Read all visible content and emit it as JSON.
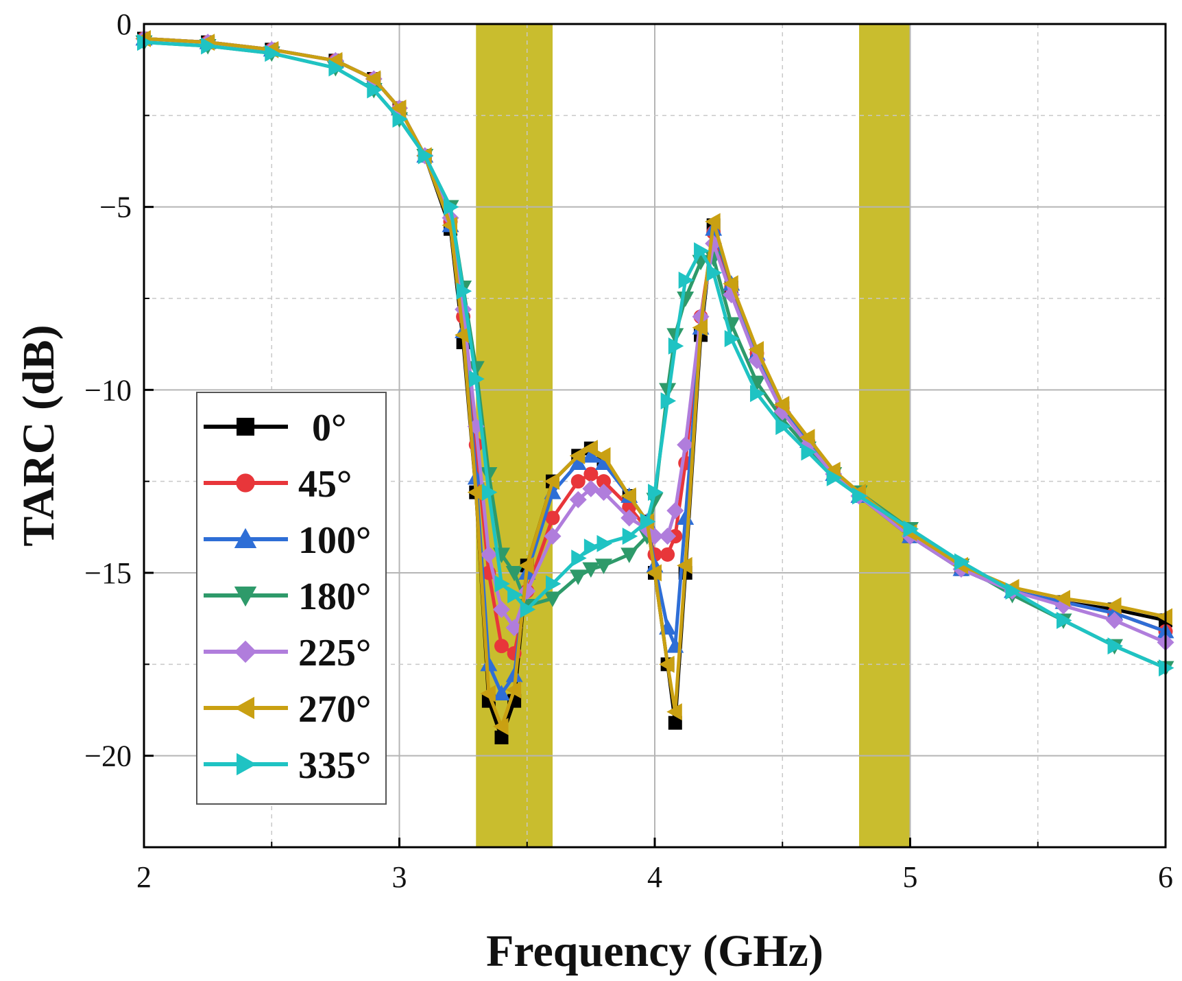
{
  "chart_data": {
    "type": "line",
    "title": "",
    "xlabel": "Frequency (GHz)",
    "ylabel": "TARC (dB)",
    "xlim": [
      2,
      6
    ],
    "ylim": [
      -22.5,
      0
    ],
    "xticks": [
      2,
      3,
      4,
      5,
      6
    ],
    "xtick_labels": [
      "2",
      "3",
      "4",
      "5",
      "6"
    ],
    "yticks": [
      0,
      -5,
      -10,
      -15,
      -20
    ],
    "ytick_labels": [
      "0",
      "−5",
      "−10",
      "−15",
      "−20"
    ],
    "grid": true,
    "legend_position": "lower-left",
    "shaded_bands": [
      {
        "x_start": 3.3,
        "x_end": 3.6,
        "color": "#c9bd2e"
      },
      {
        "x_start": 4.8,
        "x_end": 5.0,
        "color": "#c9bd2e"
      }
    ],
    "series": [
      {
        "name": "0°",
        "color": "#000000",
        "marker": "square",
        "x": [
          2.0,
          2.25,
          2.5,
          2.75,
          2.9,
          3.0,
          3.1,
          3.2,
          3.25,
          3.3,
          3.35,
          3.4,
          3.45,
          3.5,
          3.6,
          3.7,
          3.75,
          3.8,
          3.9,
          3.97,
          4.0,
          4.05,
          4.08,
          4.12,
          4.18,
          4.23,
          4.3,
          4.4,
          4.5,
          4.6,
          4.7,
          4.8,
          5.0,
          5.2,
          5.4,
          5.6,
          5.8,
          6.0
        ],
        "values": [
          -0.4,
          -0.5,
          -0.7,
          -1.0,
          -1.5,
          -2.3,
          -3.6,
          -5.6,
          -8.7,
          -12.8,
          -18.5,
          -19.5,
          -18.5,
          -14.8,
          -12.5,
          -11.8,
          -11.6,
          -11.9,
          -12.9,
          -13.6,
          -15.0,
          -17.5,
          -19.1,
          -15.0,
          -8.5,
          -5.5,
          -7.2,
          -9.0,
          -10.5,
          -11.4,
          -12.3,
          -12.9,
          -14.0,
          -14.9,
          -15.5,
          -15.8,
          -16.0,
          -16.3
        ]
      },
      {
        "name": "45°",
        "color": "#e8363a",
        "marker": "circle",
        "x": [
          2.0,
          2.25,
          2.5,
          2.75,
          2.9,
          3.0,
          3.1,
          3.2,
          3.25,
          3.3,
          3.35,
          3.4,
          3.45,
          3.5,
          3.6,
          3.7,
          3.75,
          3.8,
          3.9,
          3.97,
          4.0,
          4.05,
          4.08,
          4.12,
          4.18,
          4.23,
          4.3,
          4.4,
          4.5,
          4.6,
          4.7,
          4.8,
          5.0,
          5.2,
          5.4,
          5.6,
          5.8,
          6.0
        ],
        "values": [
          -0.4,
          -0.5,
          -0.7,
          -1.0,
          -1.5,
          -2.3,
          -3.6,
          -5.4,
          -8.0,
          -11.5,
          -15.0,
          -17.0,
          -17.2,
          -15.5,
          -13.5,
          -12.5,
          -12.3,
          -12.5,
          -13.2,
          -13.8,
          -14.5,
          -14.5,
          -14.0,
          -12.0,
          -8.0,
          -5.7,
          -7.2,
          -9.0,
          -10.5,
          -11.4,
          -12.3,
          -12.9,
          -14.0,
          -14.9,
          -15.5,
          -15.8,
          -16.1,
          -16.6
        ]
      },
      {
        "name": "100°",
        "color": "#2e6ed6",
        "marker": "triangle-up",
        "x": [
          2.0,
          2.25,
          2.5,
          2.75,
          2.9,
          3.0,
          3.1,
          3.2,
          3.25,
          3.3,
          3.35,
          3.4,
          3.45,
          3.5,
          3.6,
          3.7,
          3.75,
          3.8,
          3.9,
          3.97,
          4.0,
          4.05,
          4.08,
          4.12,
          4.18,
          4.23,
          4.3,
          4.4,
          4.5,
          4.6,
          4.7,
          4.8,
          5.0,
          5.2,
          5.4,
          5.6,
          5.8,
          6.0
        ],
        "values": [
          -0.4,
          -0.5,
          -0.7,
          -1.0,
          -1.5,
          -2.3,
          -3.6,
          -5.5,
          -8.4,
          -12.4,
          -17.5,
          -18.3,
          -17.8,
          -15.0,
          -12.8,
          -12.0,
          -11.8,
          -12.0,
          -12.9,
          -13.6,
          -14.8,
          -16.5,
          -17.0,
          -13.5,
          -8.3,
          -5.6,
          -7.1,
          -9.0,
          -10.5,
          -11.4,
          -12.3,
          -12.9,
          -14.0,
          -14.9,
          -15.5,
          -15.8,
          -16.1,
          -16.6
        ]
      },
      {
        "name": "180°",
        "color": "#2e9a6a",
        "marker": "triangle-down",
        "x": [
          2.0,
          2.25,
          2.5,
          2.75,
          2.9,
          3.0,
          3.1,
          3.2,
          3.25,
          3.3,
          3.35,
          3.4,
          3.45,
          3.5,
          3.6,
          3.7,
          3.75,
          3.8,
          3.9,
          3.97,
          4.0,
          4.05,
          4.08,
          4.12,
          4.18,
          4.23,
          4.3,
          4.4,
          4.5,
          4.6,
          4.7,
          4.8,
          5.0,
          5.2,
          5.4,
          5.6,
          5.8,
          6.0
        ],
        "values": [
          -0.5,
          -0.6,
          -0.8,
          -1.2,
          -1.8,
          -2.6,
          -3.6,
          -5.0,
          -7.2,
          -9.4,
          -12.3,
          -14.5,
          -15.0,
          -15.9,
          -15.7,
          -15.1,
          -14.9,
          -14.8,
          -14.5,
          -14.0,
          -13.0,
          -10.0,
          -8.5,
          -7.5,
          -6.5,
          -6.4,
          -8.2,
          -9.8,
          -10.8,
          -11.6,
          -12.3,
          -12.8,
          -13.8,
          -14.8,
          -15.6,
          -16.3,
          -17.0,
          -17.6
        ]
      },
      {
        "name": "225°",
        "color": "#b07ddc",
        "marker": "diamond",
        "x": [
          2.0,
          2.25,
          2.5,
          2.75,
          2.9,
          3.0,
          3.1,
          3.2,
          3.25,
          3.3,
          3.35,
          3.4,
          3.45,
          3.5,
          3.6,
          3.7,
          3.75,
          3.8,
          3.9,
          3.97,
          4.0,
          4.05,
          4.08,
          4.12,
          4.18,
          4.23,
          4.3,
          4.4,
          4.5,
          4.6,
          4.7,
          4.8,
          5.0,
          5.2,
          5.4,
          5.6,
          5.8,
          6.0
        ],
        "values": [
          -0.4,
          -0.5,
          -0.7,
          -1.0,
          -1.5,
          -2.3,
          -3.6,
          -5.3,
          -7.8,
          -11.0,
          -14.5,
          -16.0,
          -16.5,
          -15.5,
          -14.0,
          -13.0,
          -12.7,
          -12.8,
          -13.5,
          -13.8,
          -14.0,
          -14.0,
          -13.3,
          -11.5,
          -8.0,
          -6.0,
          -7.4,
          -9.2,
          -10.6,
          -11.5,
          -12.3,
          -12.9,
          -14.0,
          -14.9,
          -15.5,
          -15.9,
          -16.3,
          -16.9
        ]
      },
      {
        "name": "270°",
        "color": "#c9a012",
        "marker": "triangle-left",
        "x": [
          2.0,
          2.25,
          2.5,
          2.75,
          2.9,
          3.0,
          3.1,
          3.2,
          3.25,
          3.3,
          3.35,
          3.4,
          3.45,
          3.5,
          3.6,
          3.7,
          3.75,
          3.8,
          3.9,
          3.97,
          4.0,
          4.05,
          4.08,
          4.12,
          4.18,
          4.23,
          4.3,
          4.4,
          4.5,
          4.6,
          4.7,
          4.8,
          5.0,
          5.2,
          5.4,
          5.6,
          5.8,
          6.0
        ],
        "values": [
          -0.4,
          -0.5,
          -0.7,
          -1.0,
          -1.5,
          -2.3,
          -3.6,
          -5.5,
          -8.5,
          -12.8,
          -18.3,
          -19.2,
          -18.2,
          -14.8,
          -12.5,
          -11.8,
          -11.6,
          -11.8,
          -12.9,
          -13.6,
          -15.0,
          -17.5,
          -18.8,
          -14.8,
          -8.3,
          -5.4,
          -7.1,
          -8.9,
          -10.4,
          -11.3,
          -12.2,
          -12.8,
          -13.9,
          -14.8,
          -15.4,
          -15.7,
          -15.9,
          -16.2
        ]
      },
      {
        "name": "335°",
        "color": "#1fc3c3",
        "marker": "triangle-right",
        "x": [
          2.0,
          2.25,
          2.5,
          2.75,
          2.9,
          3.0,
          3.1,
          3.2,
          3.25,
          3.3,
          3.35,
          3.4,
          3.45,
          3.5,
          3.6,
          3.7,
          3.75,
          3.8,
          3.9,
          3.97,
          4.0,
          4.05,
          4.08,
          4.12,
          4.18,
          4.23,
          4.3,
          4.4,
          4.5,
          4.6,
          4.7,
          4.8,
          5.0,
          5.2,
          5.4,
          5.6,
          5.8,
          6.0
        ],
        "values": [
          -0.5,
          -0.6,
          -0.8,
          -1.2,
          -1.8,
          -2.6,
          -3.6,
          -5.0,
          -7.3,
          -9.7,
          -12.8,
          -15.3,
          -15.6,
          -16.0,
          -15.3,
          -14.6,
          -14.3,
          -14.2,
          -14.0,
          -13.6,
          -12.8,
          -10.3,
          -8.8,
          -7.0,
          -6.2,
          -6.8,
          -8.6,
          -10.1,
          -11.0,
          -11.7,
          -12.4,
          -12.9,
          -13.8,
          -14.7,
          -15.5,
          -16.3,
          -17.0,
          -17.6
        ]
      }
    ]
  }
}
